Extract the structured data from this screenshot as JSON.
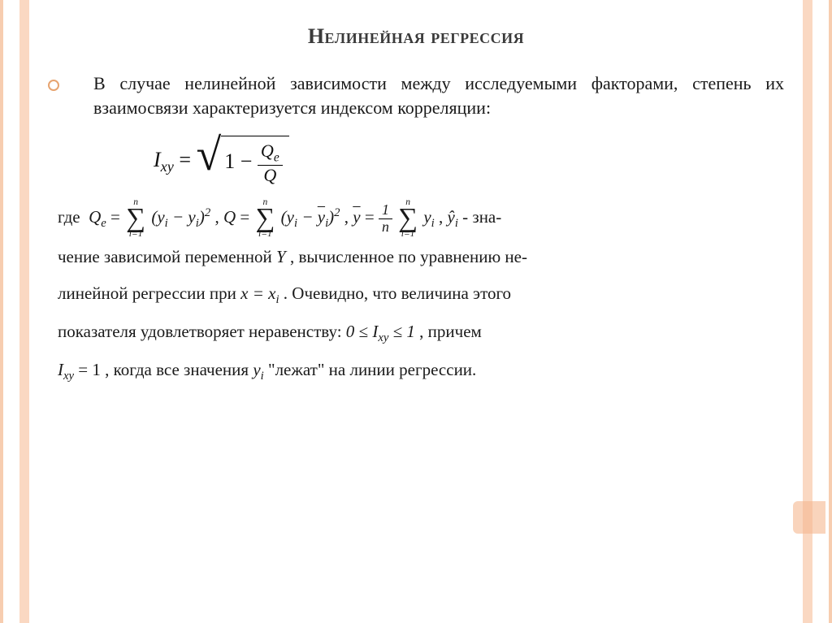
{
  "slide": {
    "title": "Нелинейная регрессия",
    "intro": "В случае нелинейной зависимости между исследуемыми факторами, степень их взаимосвязи характеризуется индексом корреляции:",
    "main_formula": {
      "lhs": "I",
      "lhs_sub": "xy",
      "frac_num": "Q",
      "frac_num_sub": "e",
      "frac_den": "Q"
    },
    "body": {
      "where": "где",
      "q_e": "Q",
      "q_e_sub": "e",
      "sum_top": "n",
      "sum_bot": "i=1",
      "term1_open": "(",
      "term1_a": "y",
      "term1_a_sub": "i",
      "minus": " − ",
      "term1_b": "y",
      "term1_b_sub": "i",
      "term1_close": ")",
      "sq": "2",
      "comma": " ,  ",
      "q": "Q",
      "ybar": "y",
      "ybar_sub": "i",
      "onen_num": "1",
      "onen_den": "n",
      "yhat": "ŷ",
      "yhat_sub": "i",
      "dash_txt": " - зна-",
      "line2a": "чение зависимой переменной ",
      "Y": "Y",
      "line2b": " , вычисленное по уравнению не-",
      "line3a": "линейной регрессии при ",
      "x_eq": "x = x",
      "x_eq_sub": "i",
      "line3b": " . Очевидно, что величина этого",
      "line4a": "показателя удовлетворяет неравенству: ",
      "ineq_a": "0 ≤ I",
      "ineq_sub": "xy",
      "ineq_b": " ≤ 1",
      "line4b": " , причем",
      "line5_lhs": "I",
      "line5_sub": "xy",
      "line5_eq": " = 1",
      "line5a": ", когда все значения ",
      "yi": "y",
      "yi_sub": "i",
      "line5b": " \"лежат\" на линии регрессии."
    }
  },
  "style": {
    "accent_color": "#f5b88f",
    "border_color": "#f7cdb0",
    "text_color": "#1a1a1a",
    "title_color": "#3a3a3a",
    "title_fontsize": 26,
    "intro_fontsize": 22,
    "body_fontsize": 21,
    "formula_fontsize": 26
  }
}
